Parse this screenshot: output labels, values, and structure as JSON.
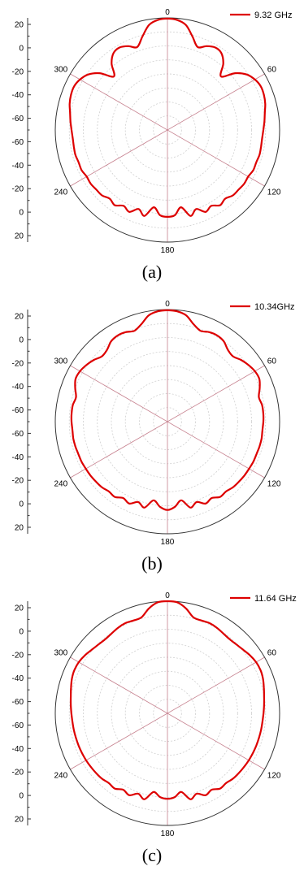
{
  "chart_data": [
    {
      "type": "polar",
      "caption": "(a)",
      "legend": {
        "label": "9.32 GHz",
        "position": "top-right"
      },
      "angle_labels": [
        "0",
        "60",
        "120",
        "180",
        "240",
        "300"
      ],
      "radial_tick_labels": [
        "20",
        "0",
        "-20",
        "-40",
        "-60",
        "-60",
        "-40",
        "-20",
        "0",
        "20"
      ],
      "rlim_db": [
        -60,
        20
      ],
      "angle_grid_deg": [
        0,
        60,
        120
      ],
      "ring_levels_db": [
        -40,
        -20,
        0,
        20
      ],
      "series": [
        {
          "name": "9.32 GHz",
          "color": "#dd0000",
          "theta_deg": [
            0,
            5,
            10,
            15,
            20,
            25,
            30,
            35,
            40,
            45,
            50,
            55,
            60,
            65,
            70,
            75,
            80,
            85,
            90,
            95,
            100,
            105,
            110,
            115,
            120,
            125,
            130,
            135,
            140,
            145,
            150,
            155,
            160,
            165,
            170,
            175,
            180,
            185,
            190,
            195,
            200,
            205,
            210,
            215,
            220,
            225,
            230,
            235,
            240,
            245,
            250,
            255,
            260,
            265,
            270,
            275,
            280,
            285,
            290,
            295,
            300,
            305,
            310,
            315,
            320,
            325,
            330,
            335,
            340,
            345,
            350,
            355
          ],
          "r_db": [
            19.5,
            18.8,
            16,
            9,
            3,
            6,
            8,
            7,
            2,
            -6,
            3,
            9,
            12,
            13.5,
            13.2,
            12.2,
            10.5,
            9.4,
            8.4,
            7.8,
            7.8,
            8,
            7.4,
            7.6,
            6.5,
            6.8,
            6.2,
            6,
            4,
            5.5,
            2.5,
            4.5,
            0,
            3.5,
            -4,
            1,
            2,
            1,
            -4,
            3.5,
            0,
            4.5,
            2.5,
            5.5,
            4,
            6,
            6.2,
            6.8,
            6.5,
            7.6,
            7.4,
            8,
            7.8,
            7.8,
            8.4,
            9.4,
            10.5,
            12.2,
            13.2,
            13.5,
            12,
            9,
            3,
            -6,
            2,
            7,
            8,
            6,
            3,
            9,
            16,
            18.8
          ]
        }
      ]
    },
    {
      "type": "polar",
      "caption": "(b)",
      "legend": {
        "label": "10.34GHz",
        "position": "top-right"
      },
      "angle_labels": [
        "0",
        "60",
        "120",
        "180",
        "240",
        "300"
      ],
      "radial_tick_labels": [
        "20",
        "0",
        "-20",
        "-40",
        "-60",
        "-60",
        "-40",
        "-20",
        "0",
        "20"
      ],
      "rlim_db": [
        -60,
        20
      ],
      "angle_grid_deg": [
        0,
        60,
        120
      ],
      "ring_levels_db": [
        -40,
        -20,
        0,
        20
      ],
      "series": [
        {
          "name": "10.34GHz",
          "color": "#dd0000",
          "theta_deg": [
            0,
            5,
            10,
            15,
            20,
            25,
            30,
            35,
            40,
            45,
            50,
            55,
            60,
            65,
            70,
            75,
            80,
            85,
            90,
            95,
            100,
            105,
            110,
            115,
            120,
            125,
            130,
            135,
            140,
            145,
            150,
            155,
            160,
            165,
            170,
            175,
            180,
            185,
            190,
            195,
            200,
            205,
            210,
            215,
            220,
            225,
            230,
            235,
            240,
            245,
            250,
            255,
            260,
            265,
            270,
            275,
            280,
            285,
            290,
            295,
            300,
            305,
            310,
            315,
            320,
            325,
            330,
            335,
            340,
            345,
            350,
            355
          ],
          "r_db": [
            19.5,
            19,
            17,
            12,
            9,
            10.5,
            11,
            10,
            7,
            6,
            8.5,
            10.5,
            12,
            12.3,
            10,
            7.5,
            8.5,
            8.6,
            8.4,
            8,
            8.2,
            8,
            7.6,
            7.6,
            7.2,
            7,
            6.6,
            6.2,
            5,
            5.5,
            3,
            4.5,
            1,
            3.5,
            -3,
            1,
            3,
            1,
            -3,
            3.5,
            1,
            4.5,
            3,
            5.5,
            5,
            6.2,
            6.6,
            7,
            7.2,
            7.6,
            7.6,
            8,
            8.2,
            8,
            8.4,
            8.6,
            8.5,
            7.5,
            10,
            12.3,
            12,
            10.5,
            8.5,
            6,
            7,
            10,
            11,
            10.5,
            9,
            12,
            17,
            19
          ]
        }
      ]
    },
    {
      "type": "polar",
      "caption": "(c)",
      "legend": {
        "label": "11.64 GHz",
        "position": "top-right"
      },
      "angle_labels": [
        "0",
        "60",
        "120",
        "180",
        "240",
        "300"
      ],
      "radial_tick_labels": [
        "20",
        "0",
        "-20",
        "-40",
        "-60",
        "-60",
        "-40",
        "-20",
        "0",
        "20"
      ],
      "rlim_db": [
        -60,
        20
      ],
      "angle_grid_deg": [
        0,
        60,
        120
      ],
      "ring_levels_db": [
        -40,
        -20,
        0,
        20
      ],
      "series": [
        {
          "name": "11.64 GHz",
          "color": "#dd0000",
          "theta_deg": [
            0,
            5,
            10,
            15,
            20,
            25,
            30,
            35,
            40,
            45,
            50,
            55,
            60,
            65,
            70,
            75,
            80,
            85,
            90,
            95,
            100,
            105,
            110,
            115,
            120,
            125,
            130,
            135,
            140,
            145,
            150,
            155,
            160,
            165,
            170,
            175,
            180,
            185,
            190,
            195,
            200,
            205,
            210,
            215,
            220,
            225,
            230,
            235,
            240,
            245,
            250,
            255,
            260,
            265,
            270,
            275,
            280,
            285,
            290,
            295,
            300,
            305,
            310,
            315,
            320,
            325,
            330,
            335,
            340,
            345,
            350,
            355
          ],
          "r_db": [
            20,
            19.5,
            16,
            11,
            10.5,
            11,
            10.5,
            9.5,
            9,
            9.5,
            10.5,
            12,
            13,
            13.2,
            12.5,
            11.2,
            10,
            9.2,
            8.5,
            8,
            7.8,
            7.6,
            7.4,
            7.2,
            7,
            6.7,
            6.4,
            6,
            5,
            5.5,
            3,
            4.5,
            1,
            3.5,
            -3,
            0,
            1,
            0,
            -3,
            3.5,
            1,
            4.5,
            3,
            5.5,
            5,
            6,
            6.4,
            6.7,
            7,
            7.2,
            7.4,
            7.6,
            7.8,
            8,
            8.5,
            9.2,
            10,
            11.2,
            12.5,
            13.2,
            13,
            12,
            10.5,
            9.5,
            9,
            9.5,
            10.5,
            11,
            10.5,
            11,
            16,
            19.5
          ]
        }
      ]
    }
  ]
}
